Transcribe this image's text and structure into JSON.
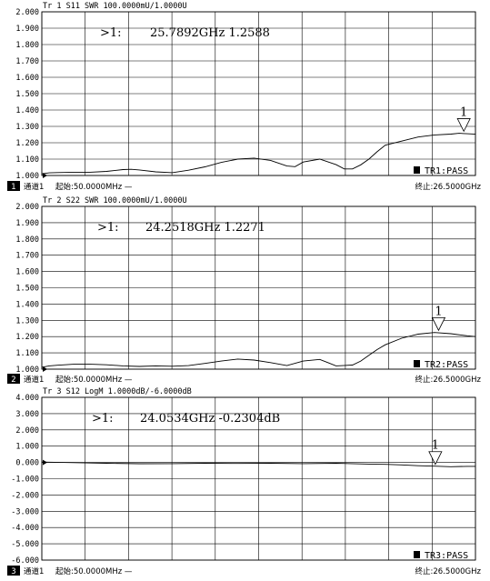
{
  "chart_data": [
    {
      "type": "line",
      "trace_header": "Tr 1  S11 SWR 100.0000mU/1.0000U",
      "ytick_labels": [
        "2.000",
        "1.900",
        "1.800",
        "1.700",
        "1.600",
        "1.500",
        "1.400",
        "1.300",
        "1.200",
        "1.100",
        "1.000"
      ],
      "ylim": [
        1.0,
        2.0
      ],
      "xlim": [
        0.05,
        26.5
      ],
      "x_unit": "GHz",
      "grid": true,
      "marker": {
        "id": "1",
        "label": ">1:",
        "value_text": "25.7892GHz 1.2588",
        "x": 25.7892,
        "y": 1.2588
      },
      "limit_result": "TR1:PASS",
      "channel_badge": "1",
      "channel": "通道1",
      "start": "起始:50.0000MHz —",
      "stop": "终止:26.5000GHz",
      "series": [
        {
          "x": [
            0.05,
            0.5,
            1,
            2,
            3,
            4,
            5,
            5.5,
            6,
            7,
            8,
            9,
            10,
            11,
            12,
            13,
            14,
            15,
            15.5,
            16,
            17,
            18,
            18.5,
            19,
            19.5,
            20,
            20.5,
            21,
            22,
            23,
            24,
            25,
            25.5,
            26,
            26.5
          ],
          "y": [
            1.01,
            1.016,
            1.018,
            1.02,
            1.02,
            1.025,
            1.036,
            1.038,
            1.034,
            1.022,
            1.017,
            1.032,
            1.053,
            1.08,
            1.1,
            1.106,
            1.092,
            1.058,
            1.054,
            1.082,
            1.1,
            1.066,
            1.04,
            1.04,
            1.065,
            1.1,
            1.145,
            1.185,
            1.21,
            1.235,
            1.248,
            1.253,
            1.258,
            1.255,
            1.252
          ]
        }
      ]
    },
    {
      "type": "line",
      "trace_header": "Tr 2  S22 SWR 100.0000mU/1.0000U",
      "ytick_labels": [
        "2.000",
        "1.900",
        "1.800",
        "1.700",
        "1.600",
        "1.500",
        "1.400",
        "1.300",
        "1.200",
        "1.100",
        "1.000"
      ],
      "ylim": [
        1.0,
        2.0
      ],
      "xlim": [
        0.05,
        26.5
      ],
      "x_unit": "GHz",
      "grid": true,
      "marker": {
        "id": "1",
        "label": ">1:",
        "value_text": "24.2518GHz 1.2271",
        "x": 24.2518,
        "y": 1.2271
      },
      "limit_result": "TR2:PASS",
      "channel_badge": "2",
      "channel": "通道1",
      "start": "起始:50.0000MHz —",
      "stop": "终止:26.5000GHz",
      "series": [
        {
          "x": [
            0.05,
            0.5,
            1,
            2,
            3,
            4,
            5,
            6,
            7,
            8,
            9,
            10,
            11,
            12,
            13,
            14,
            15,
            16,
            17,
            17.5,
            18,
            19,
            19.5,
            20,
            20.5,
            21,
            22,
            23,
            24,
            25,
            26,
            26.5
          ],
          "y": [
            1.012,
            1.02,
            1.024,
            1.03,
            1.03,
            1.027,
            1.02,
            1.017,
            1.02,
            1.018,
            1.022,
            1.035,
            1.05,
            1.062,
            1.056,
            1.04,
            1.022,
            1.05,
            1.06,
            1.04,
            1.02,
            1.025,
            1.05,
            1.085,
            1.12,
            1.15,
            1.19,
            1.215,
            1.225,
            1.218,
            1.205,
            1.2
          ]
        }
      ]
    },
    {
      "type": "line",
      "trace_header": "Tr 3  S12 LogM 1.0000dB/-6.0000dB",
      "ytick_labels": [
        "4.000",
        "3.000",
        "2.000",
        "1.000",
        "0.000",
        "-1.000",
        "-2.000",
        "-3.000",
        "-4.000",
        "-5.000",
        "-6.000"
      ],
      "ylim": [
        -6.0,
        4.0
      ],
      "xlim": [
        0.05,
        26.5
      ],
      "x_unit": "GHz",
      "grid": true,
      "marker": {
        "id": "1",
        "label": ">1:",
        "value_text": "24.0534GHz -0.2304dB",
        "x": 24.0534,
        "y": -0.2304
      },
      "limit_result": "TR3:PASS",
      "channel_badge": "3",
      "channel": "通道1",
      "start": "起始:50.0000MHz —",
      "stop": "终止:26.5000GHz",
      "series": [
        {
          "x": [
            0.05,
            2,
            4,
            6,
            8,
            10,
            12,
            14,
            16,
            18,
            20,
            21,
            22,
            23,
            24,
            25,
            26,
            26.5
          ],
          "y": [
            0.02,
            -0.01,
            -0.05,
            -0.08,
            -0.07,
            -0.05,
            -0.06,
            -0.05,
            -0.07,
            -0.05,
            -0.1,
            -0.12,
            -0.15,
            -0.2,
            -0.23,
            -0.26,
            -0.24,
            -0.24
          ]
        }
      ]
    }
  ]
}
